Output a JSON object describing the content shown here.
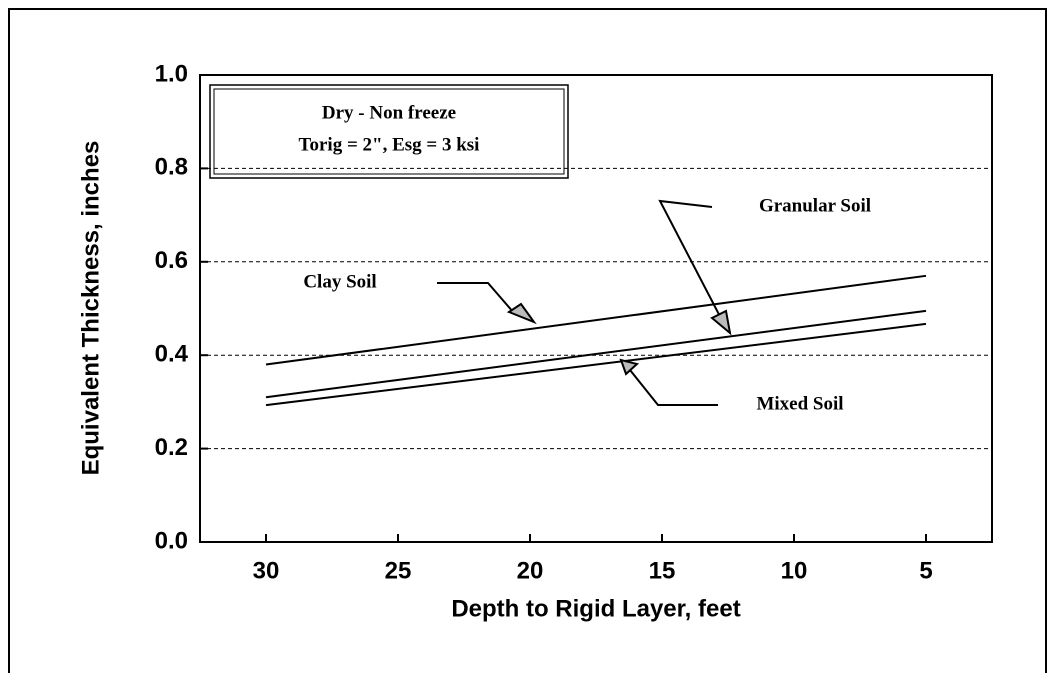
{
  "chart_data": {
    "type": "line",
    "xlabel": "Depth to Rigid Layer, feet",
    "ylabel": "Equivalent Thickness, inches",
    "note": [
      "Dry - Non freeze",
      "Torig = 2\", Esg = 3 ksi"
    ],
    "x": [
      30,
      5
    ],
    "series": [
      {
        "name": "Clay Soil",
        "color": "#000000",
        "values": [
          0.38,
          0.57
        ]
      },
      {
        "name": "Granular Soil",
        "color": "#000000",
        "values": [
          0.31,
          0.495
        ]
      },
      {
        "name": "Mixed Soil",
        "color": "#000000",
        "values": [
          0.293,
          0.467
        ]
      }
    ],
    "xlim": [
      32.5,
      2.5
    ],
    "xticks": [
      30,
      25,
      20,
      15,
      10,
      5
    ],
    "ylim": [
      0,
      1
    ],
    "yticks": [
      {
        "value": 0,
        "label": "0.0"
      },
      0.2,
      0.4,
      0.6,
      0.8,
      {
        "value": 1,
        "label": "1.0"
      }
    ],
    "grid": true
  }
}
